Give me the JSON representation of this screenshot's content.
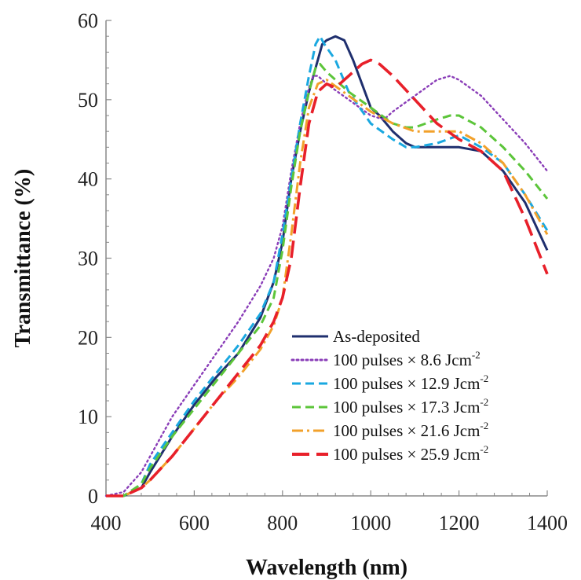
{
  "chart_data": {
    "type": "line",
    "xlabel": "Wavelength (nm)",
    "ylabel": "Transmittance (%)",
    "xlim": [
      400,
      1400
    ],
    "ylim": [
      0,
      60
    ],
    "xticks": [
      "400",
      "600",
      "800",
      "1000",
      "1200",
      "1400"
    ],
    "yticks": [
      "0",
      "10",
      "20",
      "30",
      "40",
      "50",
      "60"
    ],
    "grid": false,
    "legend_position": "bottom-right",
    "series": [
      {
        "name": "As-deposited",
        "color": "#1f2f6e",
        "dash": "solid",
        "points": [
          [
            400,
            0
          ],
          [
            440,
            0
          ],
          [
            480,
            1
          ],
          [
            500,
            3
          ],
          [
            550,
            7.5
          ],
          [
            600,
            11.5
          ],
          [
            650,
            15
          ],
          [
            700,
            18
          ],
          [
            750,
            22.5
          ],
          [
            780,
            27
          ],
          [
            800,
            32
          ],
          [
            820,
            40
          ],
          [
            840,
            46
          ],
          [
            860,
            51
          ],
          [
            870,
            53
          ],
          [
            880,
            55
          ],
          [
            890,
            57
          ],
          [
            900,
            57.5
          ],
          [
            920,
            58
          ],
          [
            940,
            57.5
          ],
          [
            960,
            55
          ],
          [
            980,
            52
          ],
          [
            1000,
            49
          ],
          [
            1020,
            48
          ],
          [
            1050,
            46
          ],
          [
            1080,
            44.5
          ],
          [
            1100,
            44
          ],
          [
            1150,
            44
          ],
          [
            1200,
            44
          ],
          [
            1250,
            43.5
          ],
          [
            1300,
            41
          ],
          [
            1350,
            37
          ],
          [
            1400,
            31
          ]
        ]
      },
      {
        "name": "100 pulses ×   8.6 Jcm-2",
        "color": "#8a3db8",
        "dash": "dotted",
        "points": [
          [
            400,
            0
          ],
          [
            440,
            0.5
          ],
          [
            480,
            3
          ],
          [
            500,
            5
          ],
          [
            550,
            10
          ],
          [
            600,
            14
          ],
          [
            650,
            18
          ],
          [
            700,
            22
          ],
          [
            750,
            26.5
          ],
          [
            780,
            30
          ],
          [
            800,
            34
          ],
          [
            820,
            41
          ],
          [
            840,
            47
          ],
          [
            860,
            51.5
          ],
          [
            870,
            53
          ],
          [
            880,
            53
          ],
          [
            890,
            52.5
          ],
          [
            900,
            52
          ],
          [
            950,
            50
          ],
          [
            1000,
            48
          ],
          [
            1030,
            47.5
          ],
          [
            1050,
            48.5
          ],
          [
            1100,
            50.5
          ],
          [
            1150,
            52.5
          ],
          [
            1180,
            53
          ],
          [
            1200,
            52.5
          ],
          [
            1250,
            50.5
          ],
          [
            1300,
            47.5
          ],
          [
            1350,
            44.5
          ],
          [
            1400,
            41
          ]
        ]
      },
      {
        "name": "100 pulses × 12.9 Jcm-2",
        "color": "#1aa8e0",
        "dash": "dashed",
        "points": [
          [
            400,
            0
          ],
          [
            440,
            0
          ],
          [
            480,
            1.5
          ],
          [
            500,
            4
          ],
          [
            550,
            8
          ],
          [
            600,
            12
          ],
          [
            650,
            15.5
          ],
          [
            700,
            19
          ],
          [
            750,
            23
          ],
          [
            780,
            27
          ],
          [
            800,
            33
          ],
          [
            820,
            40
          ],
          [
            840,
            47
          ],
          [
            860,
            53
          ],
          [
            875,
            57
          ],
          [
            885,
            58
          ],
          [
            895,
            57
          ],
          [
            920,
            55
          ],
          [
            950,
            51
          ],
          [
            1000,
            47
          ],
          [
            1050,
            45
          ],
          [
            1080,
            44
          ],
          [
            1100,
            44
          ],
          [
            1150,
            44.5
          ],
          [
            1200,
            45.5
          ],
          [
            1250,
            44
          ],
          [
            1300,
            42
          ],
          [
            1350,
            38
          ],
          [
            1400,
            33.5
          ]
        ]
      },
      {
        "name": "100 pulses × 17.3 Jcm-2",
        "color": "#5cc53a",
        "dash": "dashed",
        "points": [
          [
            400,
            0
          ],
          [
            440,
            0
          ],
          [
            480,
            1.5
          ],
          [
            500,
            3.5
          ],
          [
            550,
            7.5
          ],
          [
            600,
            11
          ],
          [
            650,
            14.5
          ],
          [
            700,
            18
          ],
          [
            750,
            21.5
          ],
          [
            780,
            25
          ],
          [
            800,
            31
          ],
          [
            820,
            39
          ],
          [
            840,
            46
          ],
          [
            860,
            51
          ],
          [
            875,
            54
          ],
          [
            885,
            54.5
          ],
          [
            900,
            53.5
          ],
          [
            950,
            51
          ],
          [
            1000,
            49
          ],
          [
            1050,
            47
          ],
          [
            1080,
            46.5
          ],
          [
            1100,
            46.5
          ],
          [
            1150,
            47.5
          ],
          [
            1180,
            48
          ],
          [
            1200,
            48
          ],
          [
            1250,
            46.5
          ],
          [
            1300,
            44
          ],
          [
            1350,
            41
          ],
          [
            1400,
            37.5
          ]
        ]
      },
      {
        "name": "100 pulses × 21.6 Jcm-2",
        "color": "#f2a12b",
        "dash": "dashdot",
        "points": [
          [
            400,
            0
          ],
          [
            440,
            0
          ],
          [
            480,
            1
          ],
          [
            500,
            2
          ],
          [
            550,
            5
          ],
          [
            600,
            8.5
          ],
          [
            650,
            12
          ],
          [
            700,
            15
          ],
          [
            750,
            18.5
          ],
          [
            780,
            21.5
          ],
          [
            800,
            25
          ],
          [
            820,
            33
          ],
          [
            840,
            42
          ],
          [
            860,
            49
          ],
          [
            880,
            52
          ],
          [
            900,
            52.5
          ],
          [
            950,
            50.5
          ],
          [
            1000,
            48.5
          ],
          [
            1050,
            47
          ],
          [
            1100,
            46
          ],
          [
            1150,
            46
          ],
          [
            1200,
            46
          ],
          [
            1250,
            44.5
          ],
          [
            1300,
            42
          ],
          [
            1350,
            38
          ],
          [
            1400,
            33
          ]
        ]
      },
      {
        "name": "100 pulses × 25.9 Jcm-2",
        "color": "#e8202a",
        "dash": "longdash",
        "points": [
          [
            400,
            0
          ],
          [
            440,
            0
          ],
          [
            480,
            1
          ],
          [
            500,
            2
          ],
          [
            550,
            5
          ],
          [
            600,
            8.5
          ],
          [
            650,
            12
          ],
          [
            700,
            15.5
          ],
          [
            750,
            19
          ],
          [
            780,
            22
          ],
          [
            800,
            25
          ],
          [
            820,
            30
          ],
          [
            840,
            39
          ],
          [
            860,
            47
          ],
          [
            880,
            51
          ],
          [
            900,
            52
          ],
          [
            920,
            51.5
          ],
          [
            950,
            53
          ],
          [
            980,
            54.5
          ],
          [
            1000,
            55
          ],
          [
            1020,
            54.5
          ],
          [
            1050,
            53
          ],
          [
            1100,
            50
          ],
          [
            1150,
            47
          ],
          [
            1200,
            45
          ],
          [
            1250,
            43.5
          ],
          [
            1300,
            41
          ],
          [
            1350,
            35
          ],
          [
            1400,
            28
          ]
        ]
      }
    ]
  }
}
